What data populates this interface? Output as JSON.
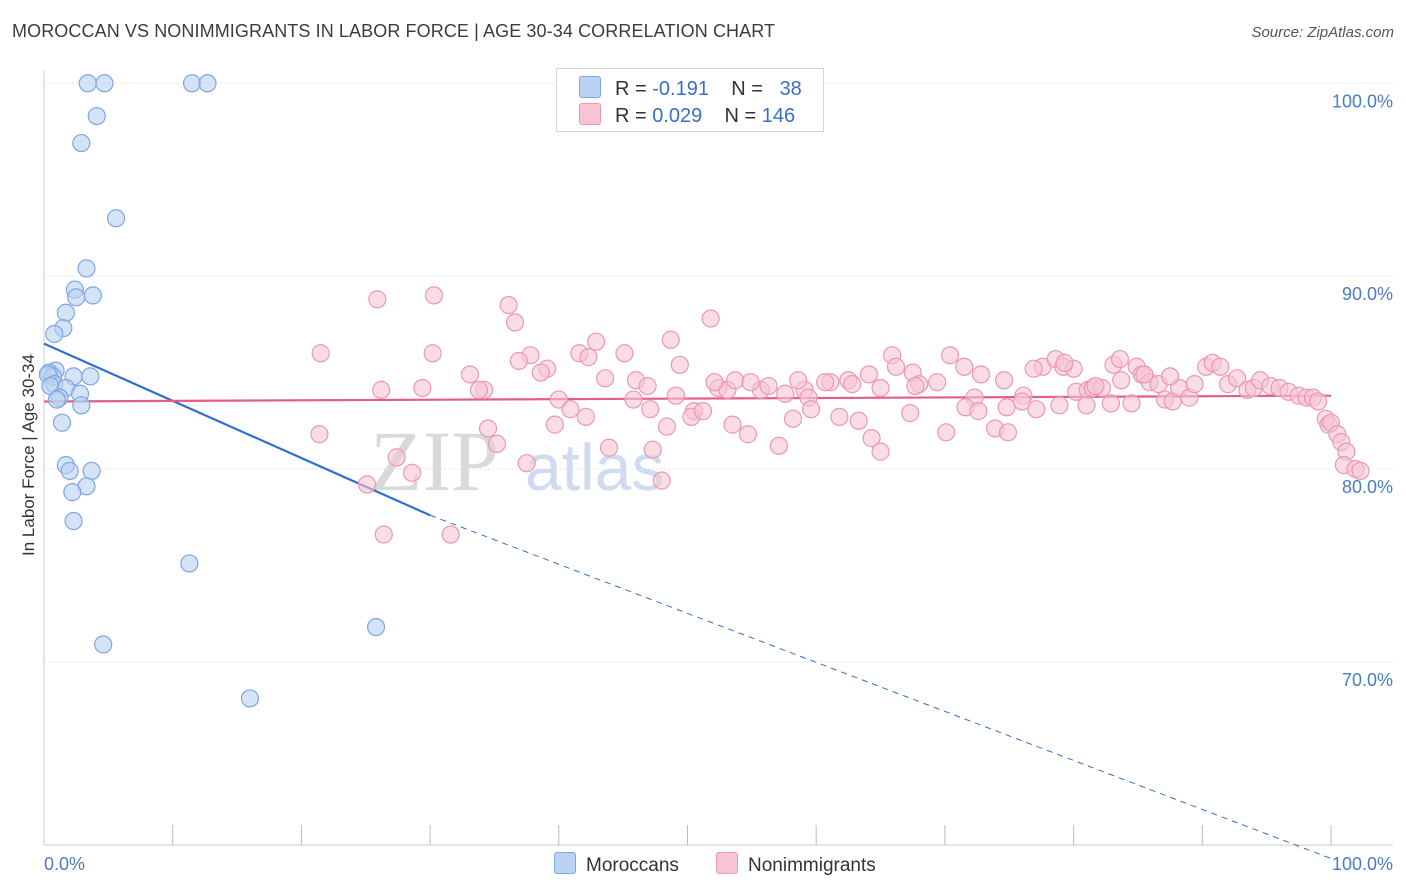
{
  "title": "MOROCCAN VS NONIMMIGRANTS IN LABOR FORCE | AGE 30-34 CORRELATION CHART",
  "source": "Source: ZipAtlas.com",
  "colors": {
    "blue_fill": "#b9d1f2",
    "blue_stroke": "#7ea6e0",
    "blue_line": "#2e6fd0",
    "pink_fill": "#f7c4d3",
    "pink_stroke": "#ec98b2",
    "pink_line": "#e35d8a",
    "axis_text": "#4a7cc7",
    "grid": "#e5e5e5"
  },
  "legend": {
    "rows": [
      {
        "r_label": "R =",
        "r_value": "-0.191",
        "n_label": "N =",
        "n_value": "38"
      },
      {
        "r_label": "R =",
        "r_value": "0.029",
        "n_label": "N =",
        "n_value": "146"
      }
    ],
    "series": [
      "Moroccans",
      "Nonimmigrants"
    ]
  },
  "chart_data": {
    "type": "scatter",
    "title": "MOROCCAN VS NONIMMIGRANTS IN LABOR FORCE | AGE 30-34 CORRELATION CHART",
    "xlabel": "",
    "ylabel": "In Labor Force | Age 30-34",
    "xlim": [
      0,
      100
    ],
    "ylim": [
      60.5,
      101
    ],
    "x_tick_labels": [
      "0.0%",
      "100.0%"
    ],
    "y_ticks": [
      70,
      80,
      90,
      100
    ],
    "y_tick_labels": [
      "70.0%",
      "80.0%",
      "90.0%",
      "100.0%"
    ],
    "watermark": "ZIPatlas",
    "series": [
      {
        "name": "Moroccans",
        "r": -0.191,
        "n": 38,
        "trend": {
          "x0": 0,
          "y0": 86.5,
          "x1": 30,
          "y1": 77.6,
          "dashed_to_x": 100,
          "dashed_to_y": 59.8
        },
        "points": [
          [
            3.4,
            100
          ],
          [
            4.7,
            100
          ],
          [
            11.5,
            100
          ],
          [
            12.7,
            100
          ],
          [
            4.1,
            98.3
          ],
          [
            2.9,
            96.9
          ],
          [
            5.6,
            93
          ],
          [
            3.3,
            90.4
          ],
          [
            2.4,
            89.3
          ],
          [
            3.8,
            89
          ],
          [
            2.5,
            88.9
          ],
          [
            1.7,
            88.1
          ],
          [
            1.5,
            87.3
          ],
          [
            0.8,
            87
          ],
          [
            0.9,
            85.1
          ],
          [
            0.4,
            85
          ],
          [
            0.7,
            84.8
          ],
          [
            0.3,
            84.9
          ],
          [
            3.6,
            84.8
          ],
          [
            2.3,
            84.8
          ],
          [
            0.8,
            84.4
          ],
          [
            0.5,
            84.3
          ],
          [
            1.7,
            84.2
          ],
          [
            2.8,
            83.9
          ],
          [
            1.2,
            83.7
          ],
          [
            1.0,
            83.6
          ],
          [
            2.9,
            83.3
          ],
          [
            1.4,
            82.4
          ],
          [
            1.7,
            80.2
          ],
          [
            2.0,
            79.9
          ],
          [
            3.7,
            79.9
          ],
          [
            3.3,
            79.1
          ],
          [
            2.2,
            78.8
          ],
          [
            2.3,
            77.3
          ],
          [
            11.3,
            75.1
          ],
          [
            4.6,
            70.9
          ],
          [
            25.8,
            71.8
          ],
          [
            16.0,
            68.1
          ]
        ]
      },
      {
        "name": "Nonimmigrants",
        "r": 0.029,
        "n": 146,
        "trend": {
          "x0": 0,
          "y0": 83.5,
          "x1": 100,
          "y1": 83.8
        },
        "points": [
          [
            25.9,
            88.8
          ],
          [
            30.3,
            89
          ],
          [
            36.1,
            88.5
          ],
          [
            36.6,
            87.6
          ],
          [
            51.8,
            87.8
          ],
          [
            42.9,
            86.6
          ],
          [
            48.7,
            86.7
          ],
          [
            41.6,
            86
          ],
          [
            39.1,
            85.2
          ],
          [
            21.5,
            86
          ],
          [
            30.2,
            86
          ],
          [
            42.3,
            85.8
          ],
          [
            45.1,
            86
          ],
          [
            37.8,
            85.9
          ],
          [
            38.6,
            85
          ],
          [
            33.1,
            84.9
          ],
          [
            26.2,
            84.1
          ],
          [
            29.4,
            84.2
          ],
          [
            34.2,
            84.1
          ],
          [
            40.0,
            83.6
          ],
          [
            43.6,
            84.7
          ],
          [
            46.0,
            84.6
          ],
          [
            45.8,
            83.6
          ],
          [
            47.1,
            83.1
          ],
          [
            49.1,
            83.8
          ],
          [
            50.5,
            83
          ],
          [
            52.4,
            84.2
          ],
          [
            53.1,
            84.1
          ],
          [
            53.7,
            84.6
          ],
          [
            55.7,
            84.1
          ],
          [
            57.6,
            83.9
          ],
          [
            59.1,
            84.1
          ],
          [
            59.4,
            83.7
          ],
          [
            61.1,
            84.5
          ],
          [
            62.5,
            84.6
          ],
          [
            64.1,
            84.9
          ],
          [
            65.0,
            84.2
          ],
          [
            65.9,
            85.9
          ],
          [
            66.2,
            85.3
          ],
          [
            67.5,
            85
          ],
          [
            68.0,
            84.4
          ],
          [
            70.4,
            85.9
          ],
          [
            71.5,
            85.3
          ],
          [
            72.3,
            83.7
          ],
          [
            74.8,
            83.2
          ],
          [
            76.1,
            83.8
          ],
          [
            77.6,
            85.3
          ],
          [
            78.6,
            85.7
          ],
          [
            79.2,
            85.3
          ],
          [
            80.0,
            85.2
          ],
          [
            80.2,
            84
          ],
          [
            81.1,
            84.1
          ],
          [
            81.5,
            84.2
          ],
          [
            82.2,
            84.2
          ],
          [
            83.1,
            85.4
          ],
          [
            83.6,
            85.7
          ],
          [
            84.9,
            85.3
          ],
          [
            85.3,
            84.9
          ],
          [
            85.9,
            84.5
          ],
          [
            86.6,
            84.4
          ],
          [
            87.1,
            83.6
          ],
          [
            87.7,
            83.5
          ],
          [
            88.2,
            84.2
          ],
          [
            89.0,
            83.7
          ],
          [
            90.3,
            85.3
          ],
          [
            90.8,
            85.5
          ],
          [
            91.4,
            85.3
          ],
          [
            92.0,
            84.4
          ],
          [
            92.7,
            84.7
          ],
          [
            93.5,
            84.1
          ],
          [
            94.0,
            84.2
          ],
          [
            94.5,
            84.6
          ],
          [
            95.3,
            84.3
          ],
          [
            96.0,
            84.2
          ],
          [
            96.7,
            84
          ],
          [
            97.5,
            83.8
          ],
          [
            98.1,
            83.7
          ],
          [
            98.6,
            83.7
          ],
          [
            99.0,
            83.5
          ],
          [
            99.6,
            82.6
          ],
          [
            99.8,
            82.3
          ],
          [
            100.0,
            82.4
          ],
          [
            100.5,
            81.8
          ],
          [
            100.8,
            81.4
          ],
          [
            101.2,
            80.9
          ],
          [
            101.0,
            80.2
          ],
          [
            101.9,
            80
          ],
          [
            102.3,
            79.9
          ],
          [
            25.1,
            79.2
          ],
          [
            26.4,
            76.6
          ],
          [
            31.6,
            76.6
          ],
          [
            28.6,
            79.8
          ],
          [
            27.4,
            80.6
          ],
          [
            21.4,
            81.8
          ],
          [
            34.5,
            82.1
          ],
          [
            35.2,
            81.3
          ],
          [
            37.5,
            80.3
          ],
          [
            39.7,
            82.3
          ],
          [
            40.9,
            83.1
          ],
          [
            42.1,
            82.7
          ],
          [
            43.9,
            81.1
          ],
          [
            47.3,
            81
          ],
          [
            48.0,
            79.4
          ],
          [
            48.4,
            82.2
          ],
          [
            50.3,
            82.7
          ],
          [
            51.2,
            83
          ],
          [
            53.5,
            82.3
          ],
          [
            54.7,
            81.8
          ],
          [
            57.1,
            81.2
          ],
          [
            58.2,
            82.6
          ],
          [
            59.6,
            83.1
          ],
          [
            61.8,
            82.7
          ],
          [
            63.3,
            82.5
          ],
          [
            64.3,
            81.6
          ],
          [
            65.0,
            80.9
          ],
          [
            67.3,
            82.9
          ],
          [
            70.1,
            81.9
          ],
          [
            71.6,
            83.2
          ],
          [
            72.6,
            83
          ],
          [
            73.9,
            82.1
          ],
          [
            74.9,
            81.9
          ],
          [
            76.0,
            83.5
          ],
          [
            77.1,
            83.1
          ],
          [
            78.9,
            83.3
          ],
          [
            81.0,
            83.3
          ],
          [
            82.9,
            83.4
          ],
          [
            84.5,
            83.4
          ],
          [
            33.8,
            84.1
          ],
          [
            36.9,
            85.6
          ],
          [
            46.9,
            84.3
          ],
          [
            49.4,
            85.4
          ],
          [
            52.1,
            84.5
          ],
          [
            54.9,
            84.5
          ],
          [
            56.3,
            84.3
          ],
          [
            58.6,
            84.6
          ],
          [
            60.7,
            84.5
          ],
          [
            62.8,
            84.4
          ],
          [
            67.7,
            84.3
          ],
          [
            69.4,
            84.5
          ],
          [
            72.8,
            84.9
          ],
          [
            74.6,
            84.6
          ],
          [
            76.9,
            85.2
          ],
          [
            79.3,
            85.5
          ],
          [
            81.7,
            84.3
          ],
          [
            83.7,
            84.6
          ],
          [
            85.5,
            84.9
          ],
          [
            87.5,
            84.8
          ],
          [
            89.4,
            84.4
          ]
        ]
      }
    ]
  }
}
